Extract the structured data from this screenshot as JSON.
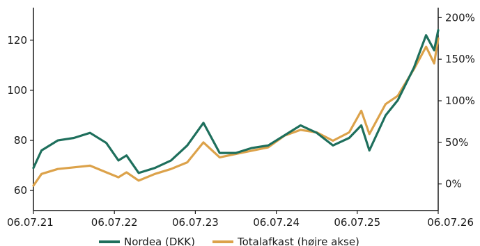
{
  "chart_data": {
    "type": "line",
    "x_ticks": [
      "06.07.21",
      "06.07.22",
      "06.07.23",
      "06.07.24",
      "06.07.25",
      "06.07.26"
    ],
    "y_left": {
      "ylim": [
        52,
        133
      ],
      "ticks": [
        60,
        80,
        100,
        120
      ]
    },
    "y_right": {
      "ylim": [
        -32,
        212
      ],
      "ticks": [
        0,
        50,
        100,
        150,
        200
      ],
      "tick_labels": [
        "0%",
        "50%",
        "100%",
        "150%",
        "200%"
      ]
    },
    "grid": false,
    "legend_position": "bottom",
    "series": [
      {
        "name": "Nordea (DKK)",
        "axis": "left",
        "color": "#1e6f5c",
        "x": [
          0,
          0.1,
          0.3,
          0.5,
          0.7,
          0.9,
          1.05,
          1.15,
          1.3,
          1.5,
          1.7,
          1.9,
          2.1,
          2.3,
          2.5,
          2.7,
          2.9,
          3.1,
          3.3,
          3.5,
          3.7,
          3.9,
          4.05,
          4.15,
          4.35,
          4.5,
          4.7,
          4.85,
          4.95,
          5.0
        ],
        "values": [
          69,
          76,
          80,
          81,
          83,
          79,
          72,
          74,
          67,
          69,
          72,
          78,
          87,
          75,
          75,
          77,
          78,
          82,
          86,
          83,
          78,
          81,
          86,
          76,
          90,
          96,
          109,
          122,
          116,
          124
        ]
      },
      {
        "name": "Totalafkast (højre akse)",
        "axis": "right",
        "color": "#dca24a",
        "x": [
          0,
          0.1,
          0.3,
          0.5,
          0.7,
          0.9,
          1.05,
          1.15,
          1.3,
          1.5,
          1.7,
          1.9,
          2.1,
          2.3,
          2.5,
          2.7,
          2.9,
          3.1,
          3.3,
          3.5,
          3.7,
          3.9,
          4.05,
          4.15,
          4.35,
          4.5,
          4.7,
          4.85,
          4.95,
          5.0
        ],
        "values": [
          -2,
          12,
          18,
          20,
          22,
          14,
          8,
          14,
          4,
          12,
          18,
          26,
          50,
          32,
          36,
          40,
          44,
          58,
          65,
          62,
          52,
          62,
          88,
          60,
          96,
          106,
          138,
          165,
          145,
          175
        ]
      }
    ]
  },
  "legend": {
    "items": [
      {
        "label": "Nordea (DKK)",
        "color": "#1e6f5c"
      },
      {
        "label": "Totalafkast (højre akse)",
        "color": "#dca24a"
      }
    ]
  }
}
